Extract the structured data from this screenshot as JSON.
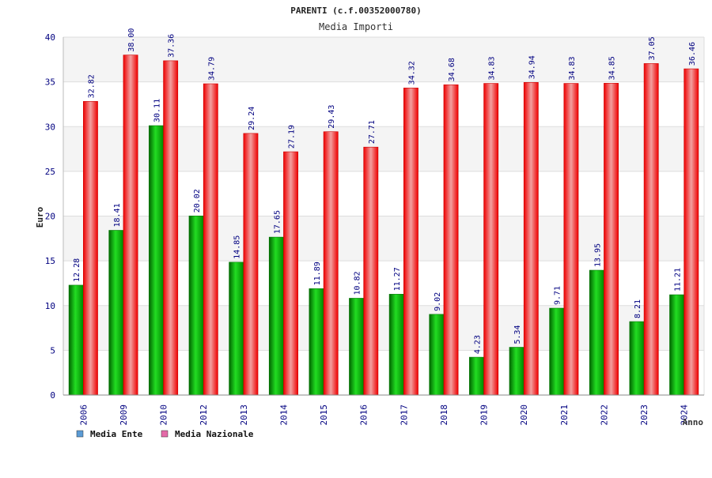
{
  "chart_data": {
    "type": "bar",
    "title": "PARENTI (c.f.00352000780)",
    "subtitle": "Media Importi",
    "ylabel": "Euro",
    "xlabel": "Anno",
    "ylim": [
      0,
      40
    ],
    "yticks": [
      0,
      5,
      10,
      15,
      20,
      25,
      30,
      35,
      40
    ],
    "grid": true,
    "legend_position": "bottom-left",
    "categories": [
      "2006",
      "2009",
      "2010",
      "2012",
      "2013",
      "2014",
      "2015",
      "2016",
      "2017",
      "2018",
      "2019",
      "2020",
      "2021",
      "2022",
      "2023",
      "2024"
    ],
    "series": [
      {
        "name": "Media Ente",
        "color": "#00b000",
        "legend_color": "#5b9bd5",
        "values": [
          12.28,
          18.41,
          30.11,
          20.02,
          14.85,
          17.65,
          11.89,
          10.82,
          11.27,
          9.02,
          4.23,
          5.34,
          9.71,
          13.95,
          8.21,
          11.21
        ],
        "labels": [
          "12.28",
          "18.41",
          "30.11",
          "20.02",
          "14.85",
          "17.65",
          "11.89",
          "10.82",
          "11.27",
          "9.02",
          "4.23",
          "5.34",
          "9.71",
          "13.95",
          "8.21",
          "11.21"
        ]
      },
      {
        "name": "Media Nazionale",
        "color": "#ee1111",
        "legend_color": "#e46aa8",
        "values": [
          32.82,
          38.0,
          37.36,
          34.79,
          29.24,
          27.19,
          29.43,
          27.71,
          34.32,
          34.68,
          34.83,
          34.94,
          34.83,
          34.85,
          37.05,
          36.46
        ],
        "labels": [
          "32.82",
          "38.00",
          "37.36",
          "34.79",
          "29.24",
          "27.19",
          "29.43",
          "27.71",
          "34.32",
          "34.68",
          "34.83",
          "34.94",
          "34.83",
          "34.85",
          "37.05",
          "36.46"
        ]
      }
    ]
  }
}
